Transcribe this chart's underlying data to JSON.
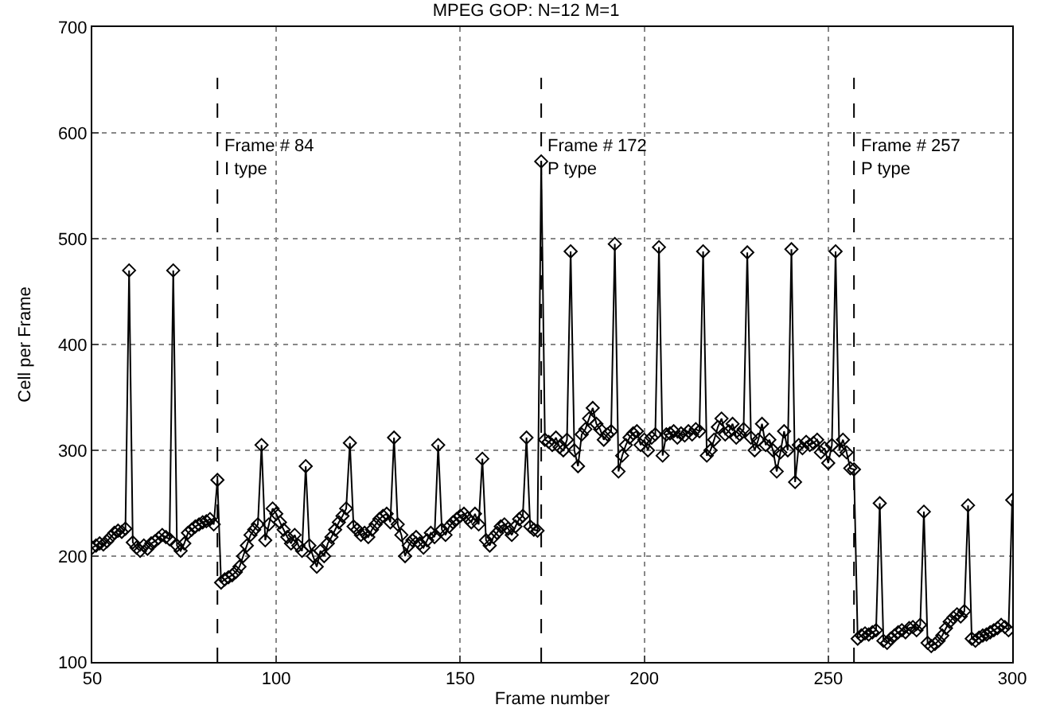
{
  "chart_data": {
    "type": "line",
    "title": "MPEG GOP: N=12 M=1",
    "xlabel": "Frame number",
    "ylabel": "Cell per Frame",
    "xlim": [
      50,
      300
    ],
    "xticks": [
      50,
      100,
      150,
      200,
      250,
      300
    ],
    "ylim": [
      100,
      700
    ],
    "yticks": [
      100,
      200,
      300,
      400,
      500,
      600,
      700
    ],
    "grid": true,
    "legend": false,
    "marker": "diamond",
    "line_style": "solid",
    "ref_lines": [
      {
        "axis": "x",
        "value": 84,
        "label": "Frame # 84\nI type",
        "line_style": "dashed",
        "color": "#000000"
      },
      {
        "axis": "x",
        "value": 172,
        "label": "Frame # 172\nP type",
        "line_style": "dashed",
        "color": "#000000"
      },
      {
        "axis": "x",
        "value": 257,
        "label": "Frame # 257\nP type",
        "line_style": "dashed",
        "color": "#000000"
      }
    ],
    "x": [
      50,
      51,
      52,
      53,
      54,
      55,
      56,
      57,
      58,
      59,
      60,
      61,
      62,
      63,
      64,
      65,
      66,
      67,
      68,
      69,
      70,
      71,
      72,
      73,
      74,
      75,
      76,
      77,
      78,
      79,
      80,
      81,
      82,
      83,
      84,
      85,
      86,
      87,
      88,
      89,
      90,
      91,
      92,
      93,
      94,
      95,
      96,
      97,
      98,
      99,
      100,
      101,
      102,
      103,
      104,
      105,
      106,
      107,
      108,
      109,
      110,
      111,
      112,
      113,
      114,
      115,
      116,
      117,
      118,
      119,
      120,
      121,
      122,
      123,
      124,
      125,
      126,
      127,
      128,
      129,
      130,
      131,
      132,
      133,
      134,
      135,
      136,
      137,
      138,
      139,
      140,
      141,
      142,
      143,
      144,
      145,
      146,
      147,
      148,
      149,
      150,
      151,
      152,
      153,
      154,
      155,
      156,
      157,
      158,
      159,
      160,
      161,
      162,
      163,
      164,
      165,
      166,
      167,
      168,
      169,
      170,
      171,
      172,
      173,
      174,
      175,
      176,
      177,
      178,
      179,
      180,
      181,
      182,
      183,
      184,
      185,
      186,
      187,
      188,
      189,
      190,
      191,
      192,
      193,
      194,
      195,
      196,
      197,
      198,
      199,
      200,
      201,
      202,
      203,
      204,
      205,
      206,
      207,
      208,
      209,
      210,
      211,
      212,
      213,
      214,
      215,
      216,
      217,
      218,
      219,
      220,
      221,
      222,
      223,
      224,
      225,
      226,
      227,
      228,
      229,
      230,
      231,
      232,
      233,
      234,
      235,
      236,
      237,
      238,
      239,
      240,
      241,
      242,
      243,
      244,
      245,
      246,
      247,
      248,
      249,
      250,
      251,
      252,
      253,
      254,
      255,
      256,
      257,
      258,
      259,
      260,
      261,
      262,
      263,
      264,
      265,
      266,
      267,
      268,
      269,
      270,
      271,
      272,
      273,
      274,
      275,
      276,
      277,
      278,
      279,
      280,
      281,
      282,
      283,
      284,
      285,
      286,
      287,
      288,
      289,
      290,
      291,
      292,
      293,
      294,
      295,
      296,
      297,
      298,
      299,
      300
    ],
    "series": [
      {
        "color": "#000000",
        "values": [
          208,
          210,
          212,
          211,
          214,
          218,
          222,
          224,
          223,
          226,
          470,
          213,
          208,
          205,
          210,
          207,
          212,
          214,
          217,
          220,
          218,
          216,
          470,
          210,
          205,
          212,
          222,
          225,
          228,
          230,
          232,
          233,
          235,
          230,
          272,
          175,
          178,
          180,
          182,
          185,
          190,
          200,
          210,
          220,
          225,
          230,
          305,
          215,
          230,
          245,
          240,
          232,
          225,
          218,
          212,
          220,
          210,
          205,
          285,
          210,
          200,
          190,
          205,
          200,
          212,
          218,
          225,
          232,
          238,
          245,
          307,
          228,
          225,
          220,
          222,
          218,
          225,
          230,
          235,
          238,
          240,
          232,
          312,
          230,
          220,
          200,
          210,
          215,
          218,
          212,
          208,
          215,
          222,
          218,
          305,
          225,
          220,
          228,
          232,
          235,
          238,
          240,
          236,
          232,
          240,
          230,
          292,
          215,
          210,
          218,
          222,
          228,
          230,
          226,
          220,
          228,
          235,
          238,
          312,
          228,
          225,
          224,
          573,
          310,
          308,
          305,
          312,
          303,
          300,
          310,
          488,
          300,
          285,
          315,
          320,
          330,
          340,
          325,
          320,
          310,
          315,
          318,
          495,
          280,
          295,
          305,
          312,
          316,
          318,
          305,
          310,
          300,
          312,
          315,
          492,
          295,
          315,
          316,
          318,
          312,
          316,
          314,
          318,
          315,
          320,
          318,
          488,
          295,
          300,
          310,
          322,
          330,
          315,
          318,
          325,
          312,
          315,
          320,
          487,
          312,
          300,
          310,
          325,
          305,
          310,
          300,
          280,
          298,
          318,
          300,
          490,
          270,
          305,
          302,
          308,
          305,
          307,
          310,
          298,
          302,
          288,
          305,
          488,
          300,
          310,
          298,
          283,
          282,
          122,
          125,
          127,
          126,
          128,
          130,
          250,
          120,
          118,
          122,
          125,
          128,
          130,
          128,
          132,
          133,
          130,
          135,
          242,
          118,
          115,
          117,
          120,
          125,
          132,
          138,
          142,
          145,
          143,
          148,
          248,
          122,
          120,
          123,
          125,
          126,
          128,
          130,
          132,
          135,
          133,
          130,
          253
        ]
      }
    ]
  }
}
